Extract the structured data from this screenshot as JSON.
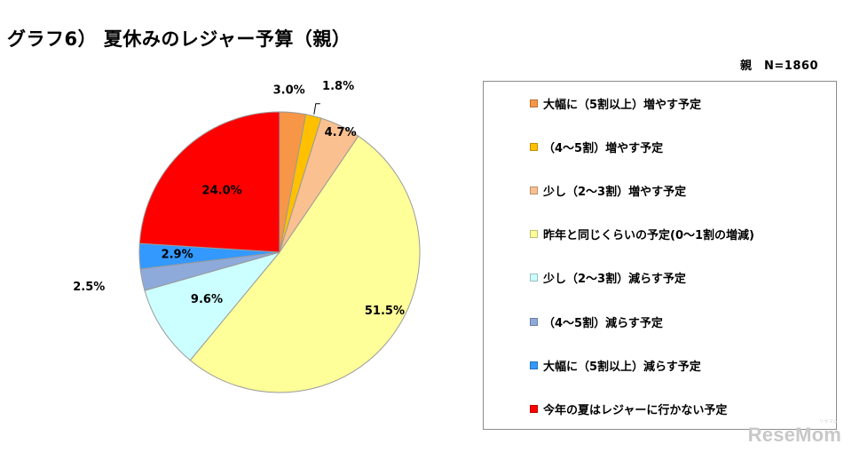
{
  "chart_data": {
    "type": "pie",
    "title": "グラフ6）  夏休みのレジャー予算（親）",
    "sample_note": "親　N=1860",
    "slices": [
      {
        "label": "大幅に（5割以上）増やす予定",
        "value": 3.0,
        "display": "3.0%",
        "color": "#f79646"
      },
      {
        "label": "（4～5割）増やす予定",
        "value": 1.8,
        "display": "1.8%",
        "color": "#ffc000"
      },
      {
        "label": "少し（2～3割）増やす予定",
        "value": 4.7,
        "display": "4.7%",
        "color": "#fac090"
      },
      {
        "label": "昨年と同じくらいの予定(0～1割の増減)",
        "value": 51.5,
        "display": "51.5%",
        "color": "#ffff99"
      },
      {
        "label": "少し（2～3割）減らす予定",
        "value": 9.6,
        "display": "9.6%",
        "color": "#ccffff"
      },
      {
        "label": "（4～5割）減らす予定",
        "value": 2.5,
        "display": "2.5%",
        "color": "#8eaadb"
      },
      {
        "label": "大幅に（5割以上）減らす予定",
        "value": 2.9,
        "display": "2.9%",
        "color": "#3399ff"
      },
      {
        "label": "今年の夏はレジャーに行かない予定",
        "value": 24.0,
        "display": "24.0%",
        "color": "#ff0000"
      }
    ],
    "legend_placement": "right",
    "start_angle": "12 o'clock",
    "direction": "clockwise"
  },
  "watermark": "ReseMom",
  "watermark_small": "リセマム"
}
